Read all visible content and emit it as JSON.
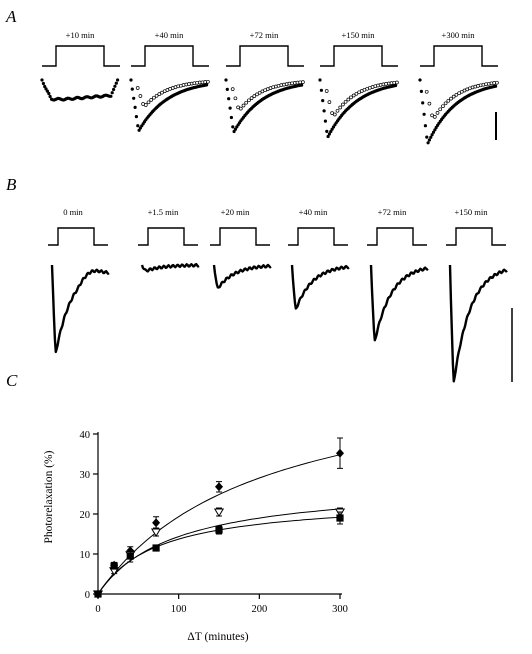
{
  "panels": {
    "A": {
      "letter": "A",
      "traces": [
        {
          "label": "+10 min",
          "peak": 0.3,
          "control_peak": null
        },
        {
          "label": "+40 min",
          "peak": 0.8,
          "control_peak": 0.42
        },
        {
          "label": "+72 min",
          "peak": 0.82,
          "control_peak": 0.48
        },
        {
          "label": "+150 min",
          "peak": 0.9,
          "control_peak": 0.58
        },
        {
          "label": "+300 min",
          "peak": 1.0,
          "control_peak": 0.62
        }
      ]
    },
    "B": {
      "letter": "B",
      "traces": [
        {
          "label": "0 min",
          "peak": 0.75
        },
        {
          "label": "+1.5 min",
          "peak": 0.05
        },
        {
          "label": "+20 min",
          "peak": 0.2
        },
        {
          "label": "+40 min",
          "peak": 0.38
        },
        {
          "label": "+72 min",
          "peak": 0.65
        },
        {
          "label": "+150 min",
          "peak": 1.0
        }
      ]
    },
    "C": {
      "letter": "C"
    }
  },
  "chart_data": {
    "type": "scatter",
    "xlabel": "ΔT (minutes)",
    "ylabel": "Photorelaxation (%)",
    "xlim": [
      0,
      300
    ],
    "ylim": [
      0,
      40
    ],
    "x_ticks": [
      0,
      100,
      200,
      300
    ],
    "y_ticks": [
      0,
      10,
      20,
      30,
      40
    ],
    "series": [
      {
        "marker": "diamond-filled",
        "x": [
          0,
          20,
          40,
          72,
          150,
          300
        ],
        "y": [
          0,
          7.2,
          10.8,
          17.8,
          26.8,
          35.2
        ],
        "err": [
          0,
          0.7,
          1.0,
          1.5,
          1.3,
          3.8
        ],
        "fit_max": 58,
        "fit_half": 200
      },
      {
        "marker": "triangle-open",
        "x": [
          0,
          20,
          40,
          72,
          150,
          300
        ],
        "y": [
          0,
          5.8,
          9.8,
          15.5,
          20.5,
          20.5
        ],
        "err": [
          0,
          0.7,
          1.0,
          1.0,
          1.0,
          1.0
        ],
        "fit_max": 28,
        "fit_half": 95
      },
      {
        "marker": "square-filled",
        "x": [
          0,
          20,
          40,
          72,
          150,
          300
        ],
        "y": [
          0,
          7.0,
          9.5,
          11.5,
          16.0,
          19.0
        ],
        "err": [
          0,
          0.7,
          1.5,
          0.7,
          1.0,
          1.5
        ],
        "fit_max": 24,
        "fit_half": 75
      }
    ]
  }
}
